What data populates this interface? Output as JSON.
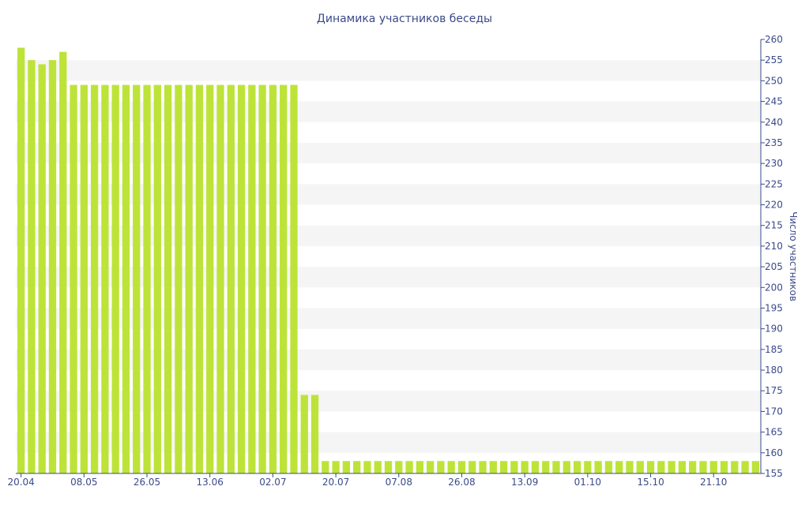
{
  "chart_data": {
    "type": "bar",
    "title": "Динамика участников беседы",
    "xlabel": "",
    "ylabel": "Число участников",
    "ylim": [
      155,
      260
    ],
    "y_ticks": [
      155,
      160,
      165,
      170,
      175,
      180,
      185,
      190,
      195,
      200,
      205,
      210,
      215,
      220,
      225,
      230,
      235,
      240,
      245,
      250,
      255,
      260
    ],
    "x_tick_labels": [
      "20.04",
      "08.05",
      "26.05",
      "13.06",
      "02.07",
      "20.07",
      "07.08",
      "26.08",
      "13.09",
      "01.10",
      "15.10",
      "21.10"
    ],
    "x_tick_indices": [
      0,
      6,
      12,
      18,
      24,
      30,
      36,
      42,
      48,
      54,
      60,
      66
    ],
    "values": [
      258,
      255,
      254,
      255,
      257,
      249,
      249,
      249,
      249,
      249,
      249,
      249,
      249,
      249,
      249,
      249,
      249,
      249,
      249,
      249,
      249,
      249,
      249,
      249,
      249,
      249,
      249,
      174,
      174,
      158,
      158,
      158,
      158,
      158,
      158,
      158,
      158,
      158,
      158,
      158,
      158,
      158,
      158,
      158,
      158,
      158,
      158,
      158,
      158,
      158,
      158,
      158,
      158,
      158,
      158,
      158,
      158,
      158,
      158,
      158,
      158,
      158,
      158,
      158,
      158,
      158,
      158,
      158,
      158,
      158,
      158
    ],
    "bar_color": "#bde339",
    "grid_band_color": "#f5f5f5",
    "axis_color": "#3a4a8a",
    "y_axis_side": "right",
    "grid": true
  }
}
